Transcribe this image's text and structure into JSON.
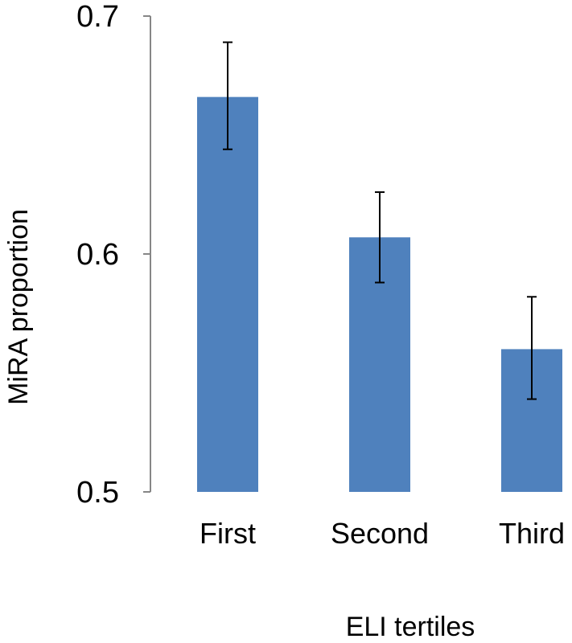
{
  "chart_data": {
    "type": "bar",
    "categories": [
      "First",
      "Second",
      "Third"
    ],
    "values": [
      0.666,
      0.607,
      0.56
    ],
    "error_bars": {
      "upper": [
        0.689,
        0.626,
        0.582
      ],
      "lower": [
        0.644,
        0.588,
        0.539
      ]
    },
    "xlabel": "ELI tertiles",
    "ylabel": "MiRA proportion",
    "ylim": [
      0.5,
      0.7
    ],
    "yticks": [
      0.5,
      0.6,
      0.7
    ],
    "ytick_labels": [
      "0.5",
      "0.6",
      "0.7"
    ],
    "grid": false,
    "legend": "none",
    "bar_color": "#4F81BD",
    "axis_color": "#868686",
    "error_bar_color": "#000000"
  }
}
